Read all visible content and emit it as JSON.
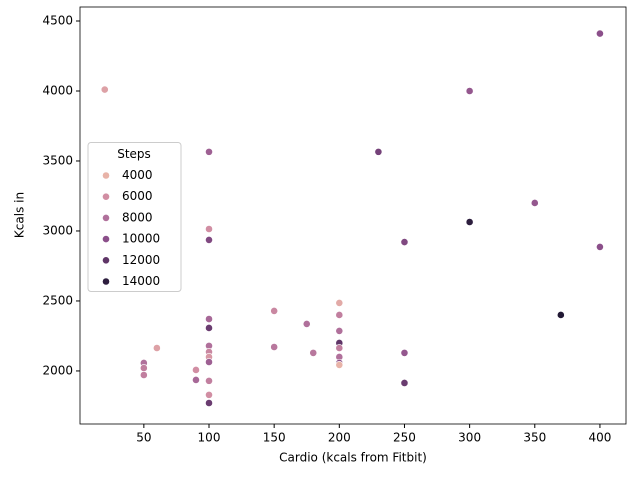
{
  "chart_data": {
    "type": "scatter",
    "xlabel": "Cardio (kcals from Fitbit)",
    "ylabel": "Kcals in",
    "x": [
      400,
      20,
      300,
      100,
      230,
      350,
      300,
      100,
      100,
      250,
      400,
      200,
      370,
      150,
      200,
      100,
      175,
      100,
      200,
      200,
      150,
      100,
      60,
      200,
      180,
      250,
      100,
      100,
      200,
      100,
      50,
      200,
      200,
      50,
      90,
      50,
      90,
      100,
      250,
      100,
      100
    ],
    "y": [
      4410,
      4010,
      4000,
      3565,
      3565,
      3200,
      3064,
      3014,
      2936,
      2921,
      2886,
      2486,
      2400,
      2429,
      2400,
      2371,
      2336,
      2307,
      2286,
      2200,
      2171,
      2179,
      2164,
      2164,
      2129,
      2129,
      2136,
      2100,
      2100,
      2064,
      2057,
      2057,
      2043,
      2021,
      2007,
      1971,
      1936,
      1929,
      1914,
      1829,
      1771
    ],
    "hue": [
      10000,
      5000,
      9500,
      9000,
      11000,
      9500,
      14000,
      6000,
      10500,
      10500,
      10000,
      4500,
      14500,
      6500,
      7000,
      8500,
      8000,
      11500,
      8000,
      12000,
      7500,
      8000,
      5000,
      7000,
      7500,
      9500,
      6500,
      5500,
      8000,
      9000,
      8000,
      10000,
      4000,
      7000,
      6000,
      7000,
      8500,
      7000,
      11500,
      6000,
      11500
    ],
    "legend": {
      "title": "Steps",
      "values": [
        4000,
        6000,
        8000,
        10000,
        12000,
        14000
      ],
      "colors": [
        "#e8b3a8",
        "#d18ea3",
        "#b0709b",
        "#8b4f8a",
        "#5f3567",
        "#2d1e3e"
      ]
    },
    "xlim": [
      1,
      420
    ],
    "ylim": [
      1621,
      4600
    ],
    "xticks": [
      50,
      100,
      150,
      200,
      250,
      300,
      350,
      400
    ],
    "yticks": [
      2000,
      2500,
      3000,
      3500,
      4000,
      4500
    ],
    "grid": false,
    "legend_loc": "center left"
  }
}
